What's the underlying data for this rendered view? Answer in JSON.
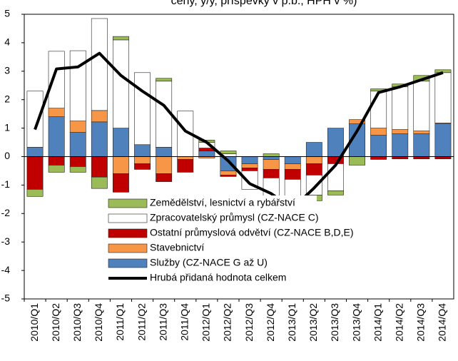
{
  "chart_data": {
    "type": "bar",
    "stacked": true,
    "title": "ceny, y/y, příspěvky v p.b., HPH v %)",
    "categories": [
      "2010/Q1",
      "2010/Q2",
      "2010/Q3",
      "2010/Q4",
      "2011/Q1",
      "2011/Q2",
      "2011/Q3",
      "2011/Q4",
      "2012/Q1",
      "2012/Q2",
      "2012/Q3",
      "2012/Q4",
      "2013/Q1",
      "2013/Q2",
      "2013/Q3",
      "2013/Q4",
      "2014/Q1",
      "2014/Q2",
      "2014/Q3",
      "2014/Q4"
    ],
    "series": [
      {
        "name": "Služby (CZ-NACE G až U)",
        "color": "#4f81bd",
        "values": [
          0.33,
          1.4,
          0.85,
          1.22,
          1.0,
          0.42,
          0.33,
          0,
          0.2,
          -0.5,
          -0.25,
          -0.1,
          -0.25,
          0.5,
          1.0,
          1.15,
          0.75,
          0.8,
          0.8,
          1.15
        ]
      },
      {
        "name": "Stavebnictví",
        "color": "#f79646",
        "values": [
          0,
          0.3,
          0.4,
          0.4,
          -0.6,
          -0.25,
          -0.6,
          -0.1,
          -0.05,
          -0.15,
          -0.15,
          -0.35,
          -0.2,
          -0.25,
          0,
          0.15,
          0.25,
          0.15,
          0.1,
          0.03
        ]
      },
      {
        "name": "Ostatní průmyslová odvětví (CZ-NACE B,D,E)",
        "color": "#c00000",
        "values": [
          -1.15,
          -0.3,
          -0.35,
          -0.72,
          -0.65,
          -0.2,
          -0.28,
          -0.45,
          0.1,
          -0.05,
          -0.1,
          -0.3,
          -0.35,
          -0.4,
          -0.25,
          0,
          -0.1,
          -0.08,
          -0.08,
          -0.08
        ]
      },
      {
        "name": "Zpracovatelský průmysl (CZ-NACE C)",
        "color": "#ffffff",
        "values": [
          1.97,
          2.0,
          2.47,
          3.23,
          3.1,
          2.53,
          2.32,
          1.6,
          0.2,
          0.1,
          -0.65,
          -0.65,
          -0.75,
          -0.7,
          -0.95,
          0,
          1.3,
          1.5,
          1.75,
          1.77
        ]
      },
      {
        "name": "Zemědělství, lesnictví a rybářství",
        "color": "#9bbb59",
        "values": [
          -0.25,
          -0.25,
          -0.2,
          -0.4,
          0.12,
          0,
          0.1,
          0,
          0.08,
          0.1,
          0,
          0.1,
          -0.2,
          -0.2,
          -0.15,
          -0.3,
          0.08,
          0.1,
          0.2,
          0.1
        ]
      },
      {
        "name": "Hrubá přidaná hodnota celkem",
        "color": "#000000",
        "type": "line",
        "values": [
          0.95,
          3.08,
          3.15,
          3.63,
          2.85,
          2.3,
          1.8,
          0.9,
          0.5,
          -0.15,
          -0.95,
          -1.3,
          -1.82,
          -1.1,
          -0.3,
          0.9,
          2.25,
          2.45,
          2.7,
          2.95
        ]
      }
    ],
    "ylim": [
      -5,
      5
    ],
    "yticks": [
      -5,
      -4,
      -3,
      -2,
      -1,
      0,
      1,
      2,
      3,
      4,
      5
    ],
    "legend": "lower left"
  }
}
